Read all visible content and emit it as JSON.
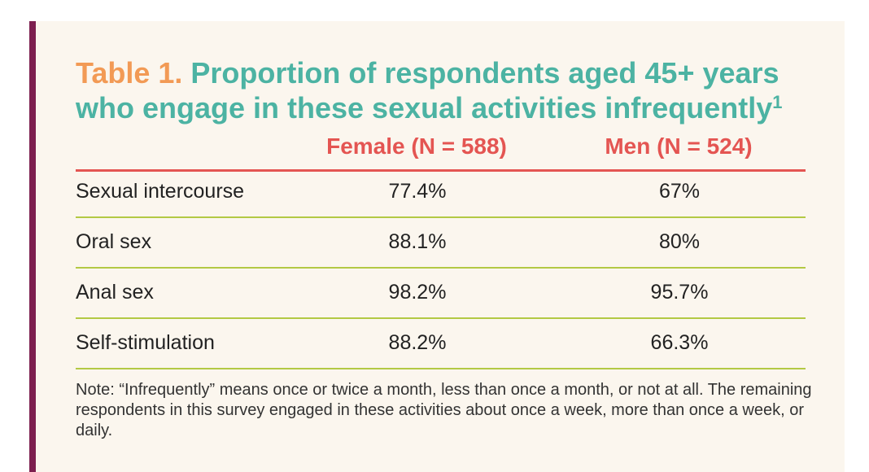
{
  "table": {
    "title_label": "Table 1.",
    "title_text": " Proportion of respondents aged 45+ years who engage in these sexual activities infrequently",
    "title_footnote": "1",
    "columns": {
      "female": "Female (N = 588)",
      "men": "Men (N = 524)"
    },
    "rows": [
      {
        "activity": "Sexual intercourse",
        "female": "77.4%",
        "men": "67%"
      },
      {
        "activity": "Oral sex",
        "female": "88.1%",
        "men": "80%"
      },
      {
        "activity": "Anal sex",
        "female": "98.2%",
        "men": "95.7%"
      },
      {
        "activity": "Self-stimulation",
        "female": "88.2%",
        "men": "66.3%"
      }
    ],
    "note": "Note: “Infrequently” means once or twice a month, less than once a month, or not at all. The remaining respondents in this survey engaged in these activities about once a week, more than once a week, or daily."
  },
  "colors": {
    "accent_bar": "#7d1f4f",
    "title_label": "#f29a55",
    "title_text": "#4cb3a3",
    "column_header": "#e45552",
    "row_rule": "#b3c944",
    "background": "#fbf6ee"
  }
}
